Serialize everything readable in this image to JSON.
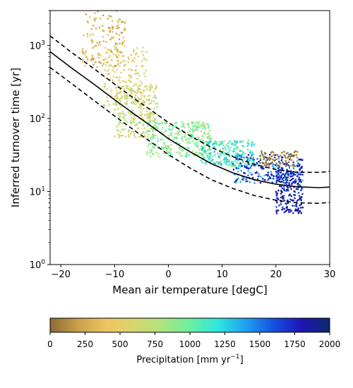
{
  "chart_data": {
    "type": "scatter",
    "xlabel": "Mean air temperature [degC]",
    "ylabel": "Inferred turnover time [yr]",
    "xlim": [
      -22,
      30
    ],
    "ylim": [
      1,
      3000
    ],
    "yscale": "log",
    "grid": false,
    "x_ticks": [
      "−20",
      "−10",
      "0",
      "10",
      "20",
      "30"
    ],
    "y_ticks": [
      {
        "base": "10",
        "exp": "0"
      },
      {
        "base": "10",
        "exp": "1"
      },
      {
        "base": "10",
        "exp": "2"
      },
      {
        "base": "10",
        "exp": "3"
      }
    ],
    "series": [
      {
        "style": "solid",
        "color": "#000000",
        "curve": "central fit",
        "x": [
          -22,
          -18,
          -14,
          -10,
          -6,
          -2,
          0,
          4,
          8,
          12,
          16,
          20,
          24,
          28,
          30
        ],
        "y": [
          820,
          490,
          300,
          180,
          110,
          68,
          53,
          35,
          24,
          18,
          14.5,
          12.6,
          11.6,
          11.3,
          11.5
        ]
      },
      {
        "style": "dashed",
        "color": "#000000",
        "curve": "upper bound",
        "x": [
          -22,
          -18,
          -14,
          -10,
          -6,
          -2,
          0,
          4,
          8,
          12,
          16,
          20,
          24,
          28,
          30
        ],
        "y": [
          1350,
          800,
          490,
          295,
          180,
          112,
          88,
          58,
          40,
          30,
          23.5,
          20,
          18.3,
          18.3,
          18.8
        ]
      },
      {
        "style": "dashed",
        "color": "#000000",
        "curve": "lower bound",
        "x": [
          -22,
          -18,
          -14,
          -10,
          -6,
          -2,
          0,
          4,
          8,
          12,
          16,
          20,
          24,
          28,
          30
        ],
        "y": [
          500,
          300,
          180,
          108,
          66,
          41,
          32,
          21,
          14.5,
          11,
          8.8,
          7.6,
          7.0,
          6.9,
          7.1
        ]
      }
    ],
    "point_clusters": [
      {
        "x_range": [
          -16,
          -8
        ],
        "y_range": [
          500,
          3000
        ],
        "precip_range": [
          150,
          450
        ],
        "count": 140
      },
      {
        "x_range": [
          -12,
          -4
        ],
        "y_range": [
          150,
          1000
        ],
        "precip_range": [
          350,
          650
        ],
        "count": 160
      },
      {
        "x_range": [
          -10,
          -2
        ],
        "y_range": [
          55,
          300
        ],
        "precip_range": [
          400,
          900
        ],
        "count": 260
      },
      {
        "x_range": [
          -4,
          8
        ],
        "y_range": [
          30,
          90
        ],
        "precip_range": [
          700,
          1100
        ],
        "count": 300
      },
      {
        "x_range": [
          6,
          16
        ],
        "y_range": [
          22,
          50
        ],
        "precip_range": [
          850,
          1350
        ],
        "count": 240
      },
      {
        "x_range": [
          12,
          25
        ],
        "y_range": [
          13,
          32
        ],
        "precip_range": [
          1300,
          1900
        ],
        "count": 240
      },
      {
        "x_range": [
          17,
          24
        ],
        "y_range": [
          22,
          36
        ],
        "precip_range": [
          0,
          120
        ],
        "count": 90
      },
      {
        "x_range": [
          20,
          25
        ],
        "y_range": [
          5,
          20
        ],
        "precip_range": [
          1600,
          2000
        ],
        "count": 200
      }
    ],
    "colorbar": {
      "label_text": "Precipitation [mm yr",
      "label_sup": "−1",
      "label_close": "]",
      "min": 0,
      "max": 2000,
      "ticks": [
        "0",
        "250",
        "500",
        "750",
        "1000",
        "1250",
        "1500",
        "1750",
        "2000"
      ],
      "colormap": [
        "#8a6b34",
        "#c9a04c",
        "#efc462",
        "#d9d56e",
        "#aee47f",
        "#6cef9f",
        "#2ee6e0",
        "#1fa0f0",
        "#1650e0",
        "#1e14b4",
        "#0c2a6b"
      ]
    }
  }
}
